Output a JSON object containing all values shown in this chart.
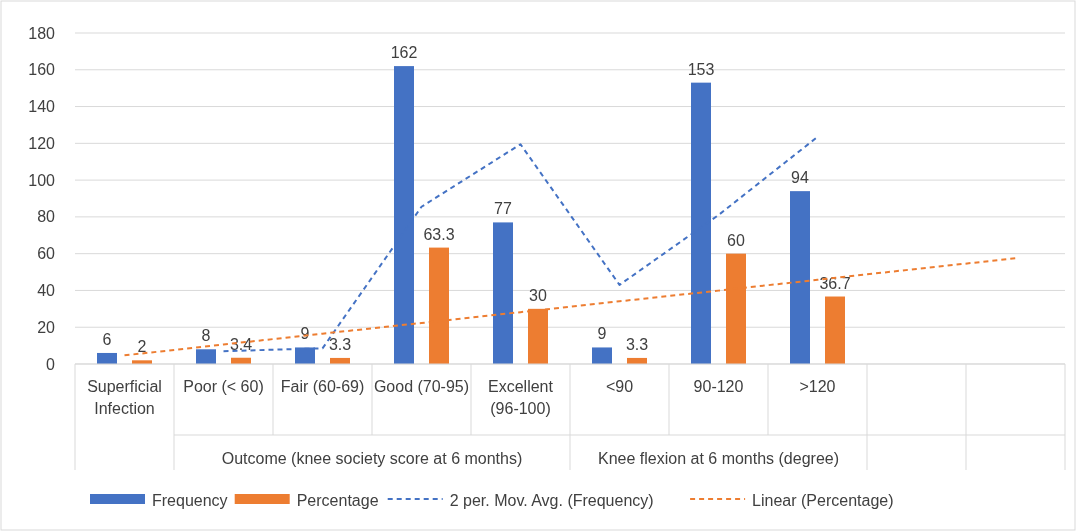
{
  "chart_data": {
    "type": "bar",
    "categories": [
      "Superficial Infection",
      "Poor (< 60)",
      "Fair (60-69)",
      "Good (70-95)",
      "Excellent (96-100)",
      "<90",
      "90-120",
      ">120",
      null,
      null
    ],
    "series": [
      {
        "name": "Frequency",
        "color": "#4472c4",
        "values": [
          6,
          8,
          9,
          162,
          77,
          9,
          153,
          94,
          null,
          null
        ],
        "value_labels": [
          "6",
          "8",
          "9",
          "162",
          "77",
          "9",
          "153",
          "94",
          null,
          null
        ]
      },
      {
        "name": "Percentage",
        "color": "#ed7d31",
        "values": [
          2,
          3.4,
          3.3,
          63.3,
          30,
          3.3,
          60,
          36.7,
          null,
          null
        ],
        "value_labels": [
          "2",
          "3.4",
          "3.3",
          "63.3",
          "30",
          "3.3",
          "60",
          "36.7",
          null,
          null
        ]
      },
      {
        "name": "2 per. Mov. Avg. (Frequency)",
        "type": "line",
        "color": "#4472c4",
        "line_style": "dashed",
        "values": [
          null,
          7,
          8.5,
          85.5,
          119.5,
          43,
          81,
          123.5,
          null,
          null
        ]
      },
      {
        "name": "Linear (Percentage)",
        "type": "line",
        "color": "#ed7d31",
        "line_style": "dashed",
        "values": [
          4.7,
          10.6,
          16.5,
          22.3,
          28.2,
          34.1,
          39.9,
          45.8,
          51.7,
          57.5
        ]
      }
    ],
    "annotations": [
      "Outcome (knee society score at 6 months)",
      "Knee flexion at 6 months (degree)"
    ],
    "ylim": [
      0,
      180
    ],
    "yticks": [
      0,
      20,
      40,
      60,
      80,
      100,
      120,
      140,
      160,
      180
    ],
    "grid": "y",
    "legend": "bottom"
  }
}
